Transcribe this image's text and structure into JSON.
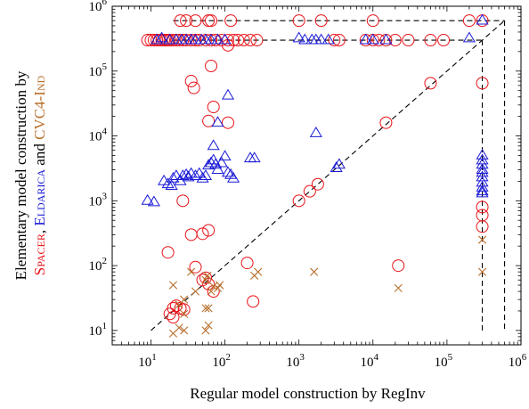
{
  "chart_data": {
    "type": "scatter",
    "xlabel": "Regular model construction by RegInv",
    "ylabel_line1": "Elementary model construction by",
    "ylabel_line2": {
      "prefix": "",
      "spacer": "Spacer",
      "sep1": ", ",
      "eldarica": "Eldarica",
      "sep2": " and ",
      "cvc4": "CVC4-Ind"
    },
    "x_scale": "log",
    "y_scale": "log",
    "xlim": [
      3,
      1000000
    ],
    "ylim": [
      6,
      1000000
    ],
    "x_ticks": [
      {
        "value": 10,
        "base": "10",
        "exp": "1"
      },
      {
        "value": 100,
        "base": "10",
        "exp": "2"
      },
      {
        "value": 1000,
        "base": "10",
        "exp": "3"
      },
      {
        "value": 10000,
        "base": "10",
        "exp": "4"
      },
      {
        "value": 100000,
        "base": "10",
        "exp": "5"
      },
      {
        "value": 1000000,
        "base": "10",
        "exp": "6"
      }
    ],
    "y_ticks": [
      {
        "value": 10,
        "base": "10",
        "exp": "1"
      },
      {
        "value": 100,
        "base": "10",
        "exp": "2"
      },
      {
        "value": 1000,
        "base": "10",
        "exp": "3"
      },
      {
        "value": 10000,
        "base": "10",
        "exp": "4"
      },
      {
        "value": 100000,
        "base": "10",
        "exp": "5"
      },
      {
        "value": 1000000,
        "base": "10",
        "exp": "6"
      }
    ],
    "grid": false,
    "reference_lines": {
      "diagonal": [
        [
          10,
          10
        ],
        [
          600000,
          600000
        ]
      ],
      "timeout_lines": [
        {
          "from": [
            20,
            600000
          ],
          "to": [
            600000,
            600000
          ]
        },
        {
          "from": [
            600000,
            600000
          ],
          "to": [
            600000,
            10
          ]
        },
        {
          "from": [
            20,
            300000
          ],
          "to": [
            300000,
            300000
          ]
        },
        {
          "from": [
            300000,
            300000
          ],
          "to": [
            300000,
            10
          ]
        }
      ]
    },
    "colors": {
      "spacer": "#e8141a",
      "eldarica": "#1a1ad6",
      "cvc4": "#b8702e",
      "reference": "#000000"
    },
    "series": [
      {
        "name": "Spacer",
        "marker": "circle",
        "color": "#e8141a",
        "points": [
          [
            9,
            300000
          ],
          [
            10,
            300000
          ],
          [
            11,
            300000
          ],
          [
            12,
            300000
          ],
          [
            13,
            300000
          ],
          [
            14,
            300000
          ],
          [
            15,
            300000
          ],
          [
            16,
            300000
          ],
          [
            17,
            300000
          ],
          [
            18,
            300000
          ],
          [
            20,
            300000
          ],
          [
            22,
            300000
          ],
          [
            24,
            300000
          ],
          [
            27,
            300000
          ],
          [
            30,
            300000
          ],
          [
            35,
            300000
          ],
          [
            40,
            300000
          ],
          [
            45,
            300000
          ],
          [
            55,
            300000
          ],
          [
            65,
            300000
          ],
          [
            75,
            300000
          ],
          [
            90,
            300000
          ],
          [
            110,
            300000
          ],
          [
            130,
            300000
          ],
          [
            150,
            300000
          ],
          [
            180,
            300000
          ],
          [
            220,
            300000
          ],
          [
            270,
            300000
          ],
          [
            3000,
            300000
          ],
          [
            3500,
            300000
          ],
          [
            8000,
            300000
          ],
          [
            10000,
            300000
          ],
          [
            12000,
            300000
          ],
          [
            15000,
            300000
          ],
          [
            20000,
            300000
          ],
          [
            30000,
            300000
          ],
          [
            60000,
            300000
          ],
          [
            90000,
            300000
          ],
          [
            25,
            600000
          ],
          [
            30,
            600000
          ],
          [
            40,
            600000
          ],
          [
            60,
            600000
          ],
          [
            65,
            600000
          ],
          [
            120,
            600000
          ],
          [
            1000,
            600000
          ],
          [
            2000,
            600000
          ],
          [
            10000,
            600000
          ],
          [
            200000,
            600000
          ],
          [
            300000,
            600000
          ],
          [
            110,
            250000
          ],
          [
            65,
            120000
          ],
          [
            35,
            70000
          ],
          [
            38,
            55000
          ],
          [
            70,
            28000
          ],
          [
            60,
            17000
          ],
          [
            110,
            16000
          ],
          [
            27,
            1000
          ],
          [
            60000,
            65000
          ],
          [
            300000,
            65000
          ],
          [
            15000,
            16000
          ],
          [
            1000,
            1000
          ],
          [
            1400,
            1400
          ],
          [
            1800,
            1800
          ],
          [
            300000,
            800
          ],
          [
            300000,
            600
          ],
          [
            300000,
            400
          ],
          [
            17,
            160
          ],
          [
            35,
            300
          ],
          [
            50,
            310
          ],
          [
            60,
            350
          ],
          [
            40,
            95
          ],
          [
            55,
            65
          ],
          [
            50,
            60
          ],
          [
            60,
            52
          ],
          [
            70,
            40
          ],
          [
            200,
            110
          ],
          [
            240,
            28
          ],
          [
            22000,
            100
          ],
          [
            20,
            22
          ],
          [
            22,
            24
          ],
          [
            25,
            22
          ],
          [
            28,
            21
          ],
          [
            18,
            18
          ],
          [
            20,
            16
          ]
        ]
      },
      {
        "name": "Eldarica",
        "marker": "triangle",
        "color": "#1a1ad6",
        "points": [
          [
            9,
            1000
          ],
          [
            11,
            950
          ],
          [
            15,
            2000
          ],
          [
            17,
            1800
          ],
          [
            19,
            1700
          ],
          [
            20,
            2200
          ],
          [
            22,
            2400
          ],
          [
            25,
            2000
          ],
          [
            27,
            2400
          ],
          [
            30,
            2500
          ],
          [
            32,
            2300
          ],
          [
            35,
            2600
          ],
          [
            40,
            2400
          ],
          [
            45,
            2600
          ],
          [
            50,
            2200
          ],
          [
            55,
            2400
          ],
          [
            60,
            3500
          ],
          [
            65,
            3800
          ],
          [
            70,
            4200
          ],
          [
            75,
            3600
          ],
          [
            80,
            3000
          ],
          [
            90,
            3800
          ],
          [
            100,
            4800
          ],
          [
            110,
            2700
          ],
          [
            120,
            2500
          ],
          [
            130,
            2200
          ],
          [
            220,
            4500
          ],
          [
            250,
            4500
          ],
          [
            3200,
            3200
          ],
          [
            3500,
            3600
          ],
          [
            70,
            7000
          ],
          [
            80,
            16000
          ],
          [
            110,
            42000
          ],
          [
            1700,
            11000
          ],
          [
            12,
            300000
          ],
          [
            14,
            320000
          ],
          [
            18,
            300000
          ],
          [
            22,
            300000
          ],
          [
            26,
            300000
          ],
          [
            30,
            300000
          ],
          [
            35,
            300000
          ],
          [
            40,
            300000
          ],
          [
            48,
            300000
          ],
          [
            55,
            300000
          ],
          [
            65,
            300000
          ],
          [
            80,
            300000
          ],
          [
            100,
            300000
          ],
          [
            1000,
            320000
          ],
          [
            1200,
            300000
          ],
          [
            1500,
            300000
          ],
          [
            1700,
            300000
          ],
          [
            2000,
            300000
          ],
          [
            2500,
            300000
          ],
          [
            8000,
            300000
          ],
          [
            10000,
            300000
          ],
          [
            15000,
            300000
          ],
          [
            200000,
            320000
          ],
          [
            300000,
            600000
          ],
          [
            300000,
            5000
          ],
          [
            300000,
            4200
          ],
          [
            300000,
            3600
          ],
          [
            300000,
            3000
          ],
          [
            300000,
            2700
          ],
          [
            300000,
            2300
          ],
          [
            300000,
            1900
          ],
          [
            300000,
            1600
          ],
          [
            300000,
            1400
          ],
          [
            300000,
            1300
          ]
        ]
      },
      {
        "name": "CVC4-Ind",
        "marker": "cross",
        "color": "#b8702e",
        "points": [
          [
            20,
            50
          ],
          [
            24,
            25
          ],
          [
            28,
            30
          ],
          [
            35,
            80
          ],
          [
            40,
            40
          ],
          [
            55,
            60
          ],
          [
            58,
            70
          ],
          [
            60,
            22
          ],
          [
            65,
            40
          ],
          [
            70,
            48
          ],
          [
            80,
            45
          ],
          [
            85,
            50
          ],
          [
            250,
            70
          ],
          [
            280,
            80
          ],
          [
            1600,
            80
          ],
          [
            22000,
            45
          ],
          [
            20,
            9
          ],
          [
            24,
            11
          ],
          [
            28,
            10
          ],
          [
            55,
            10
          ],
          [
            60,
            12
          ],
          [
            55,
            22
          ],
          [
            28,
            18
          ],
          [
            300000,
            250
          ],
          [
            300000,
            80
          ]
        ]
      }
    ]
  }
}
